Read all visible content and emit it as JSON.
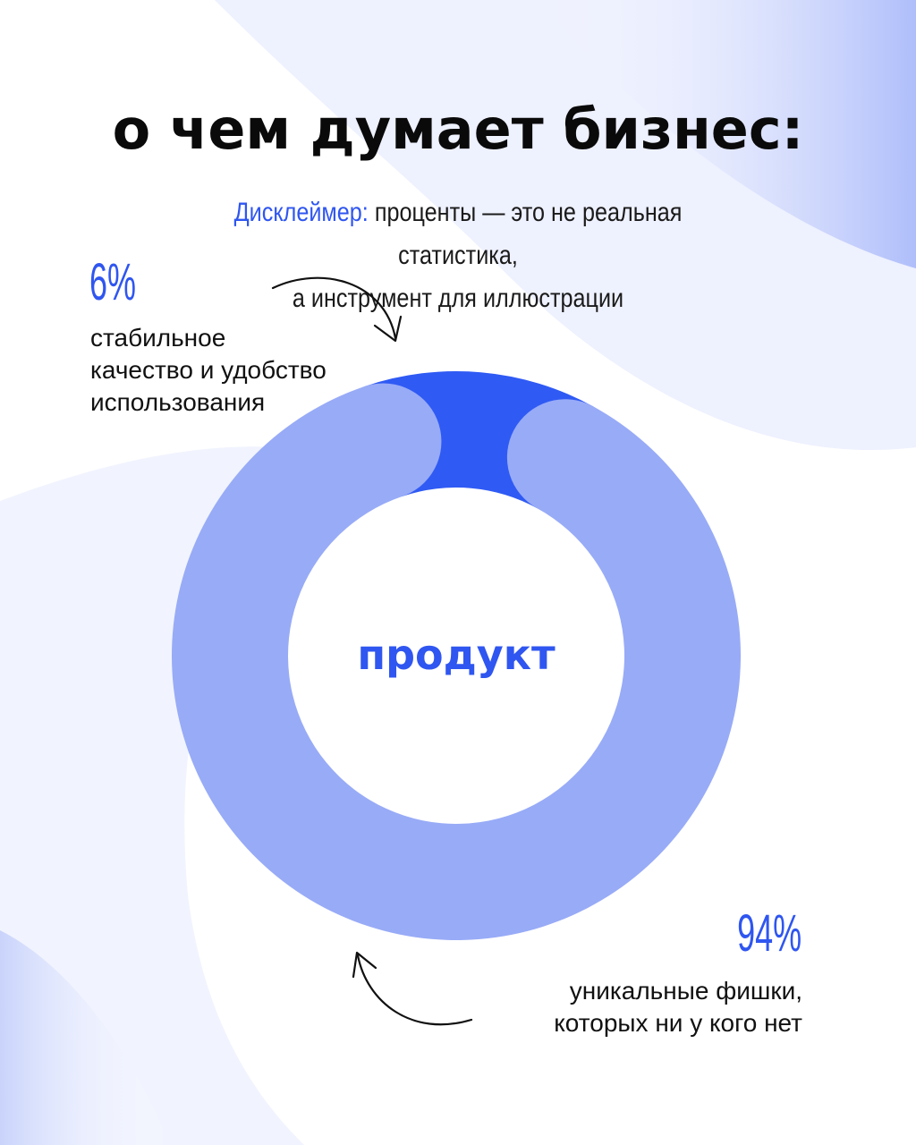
{
  "title": "о чем думает бизнес:",
  "disclaimer": {
    "label": "Дисклеймер:",
    "line1": "проценты — это не реальная статистика,",
    "line2": "а инструмент для иллюстрации"
  },
  "colors": {
    "dark_blue": "#2f5af4",
    "light_blue": "#98abf7",
    "accent_text": "#2f56f0",
    "title_text": "#0a0a0a"
  },
  "chart_data": {
    "type": "pie",
    "center_label": "продукт",
    "slices": [
      {
        "percent_label": "6%",
        "value": 6,
        "description_lines": [
          "стабильное",
          "качество и удобство",
          "использования"
        ],
        "color": "#2f5af4"
      },
      {
        "percent_label": "94%",
        "value": 94,
        "description_lines": [
          "уникальные фишки,",
          "которых ни у кого нет"
        ],
        "color": "#98abf7"
      }
    ]
  }
}
